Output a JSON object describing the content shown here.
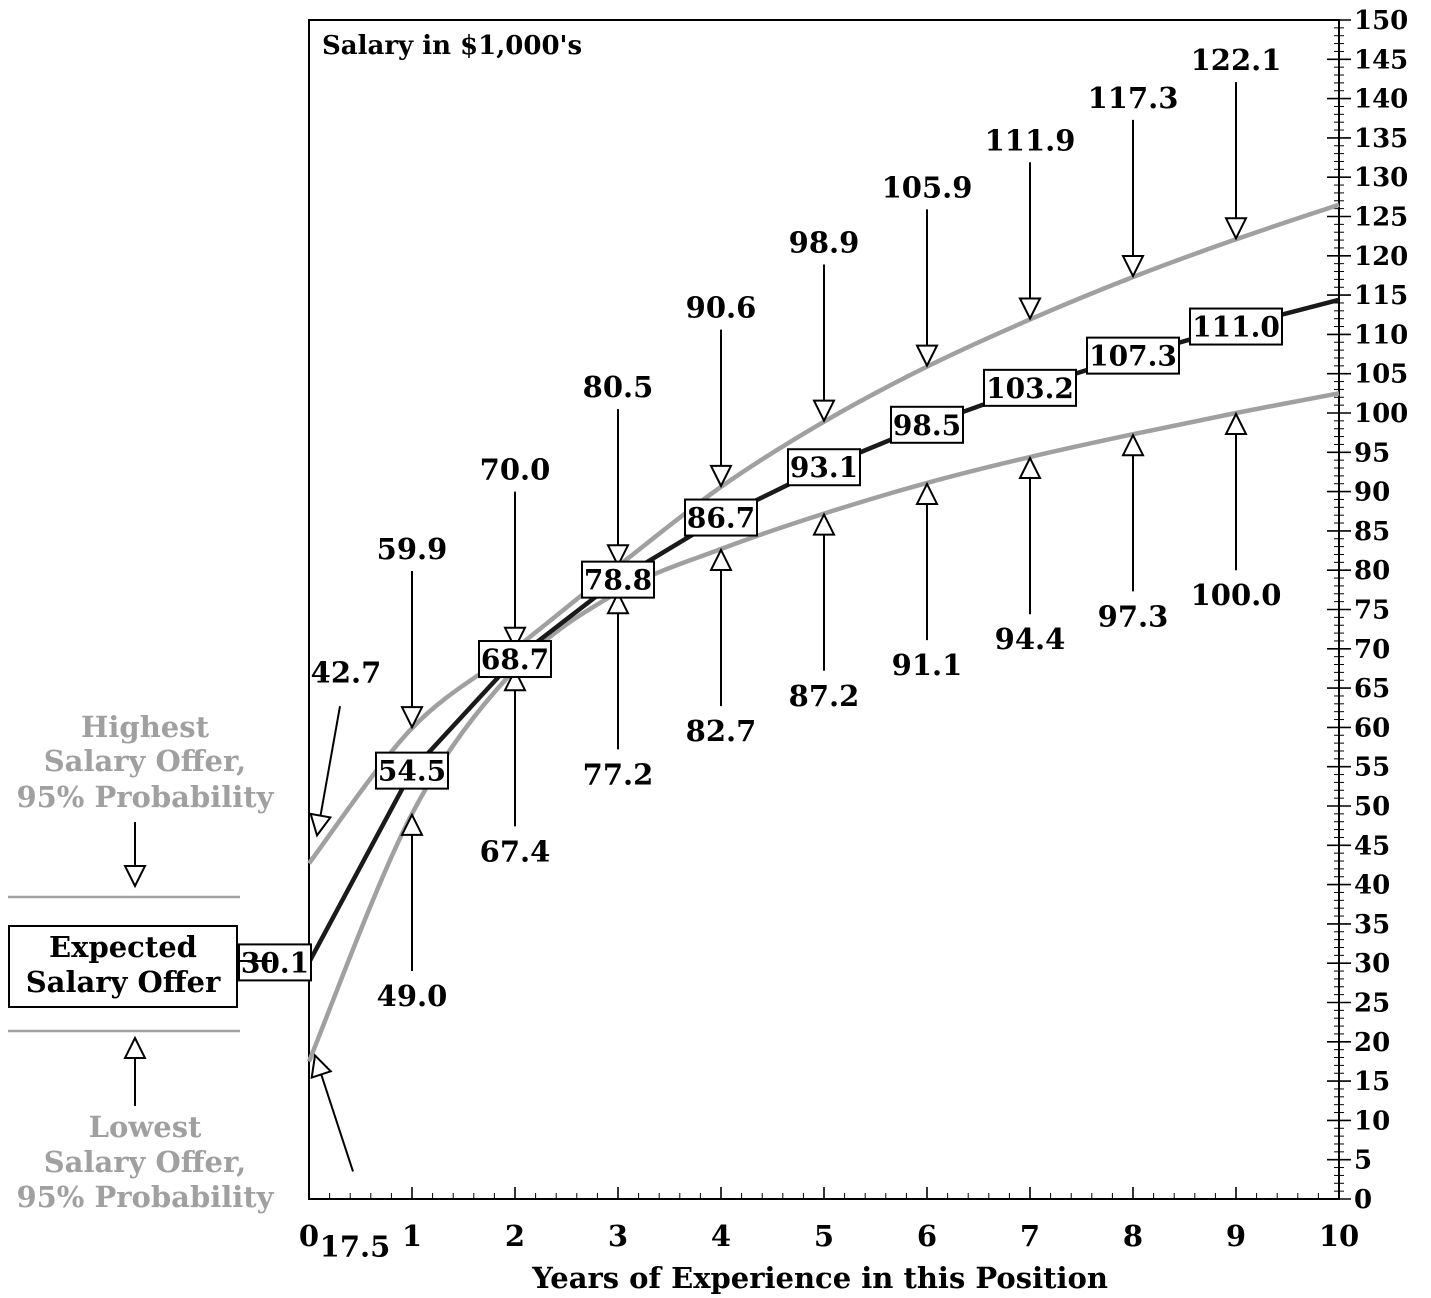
{
  "chart_data": {
    "type": "line",
    "title": "Salary in $1,000's",
    "xlabel": "Years of Experience in this Position",
    "ylabel": "",
    "xlim": [
      0,
      10
    ],
    "ylim": [
      0,
      150
    ],
    "x_ticks": [
      "0",
      "1",
      "2",
      "3",
      "4",
      "5",
      "6",
      "7",
      "8",
      "9",
      "10"
    ],
    "y_ticks": [
      "0",
      "5",
      "10",
      "15",
      "20",
      "25",
      "30",
      "35",
      "40",
      "45",
      "50",
      "55",
      "60",
      "65",
      "70",
      "75",
      "80",
      "85",
      "90",
      "95",
      "100",
      "105",
      "110",
      "115",
      "120",
      "125",
      "130",
      "135",
      "140",
      "145",
      "150"
    ],
    "y_tick_step": 5,
    "y_minor_step": 1,
    "x_minor_step": 0.2,
    "grid": false,
    "legend_position": "left",
    "x": [
      0,
      1,
      2,
      3,
      4,
      5,
      6,
      7,
      8,
      9
    ],
    "series": [
      {
        "key": "high",
        "name": "Highest Salary Offer, 95% Probability",
        "color": "#a0a0a0",
        "values": [
          42.7,
          59.9,
          70.0,
          80.5,
          90.6,
          98.9,
          105.9,
          111.9,
          117.3,
          122.1
        ],
        "labels": [
          "42.7",
          "59.9",
          "70.0",
          "80.5",
          "90.6",
          "98.9",
          "105.9",
          "111.9",
          "117.3",
          "122.1"
        ],
        "x_end": 10,
        "value_end": 126.5
      },
      {
        "key": "expected",
        "name": "Expected Salary Offer",
        "color": "#1a1a1a",
        "values": [
          30.1,
          54.5,
          68.7,
          78.8,
          86.7,
          93.1,
          98.5,
          103.2,
          107.3,
          111.0
        ],
        "labels": [
          "30.1",
          "54.5",
          "68.7",
          "78.8",
          "86.7",
          "93.1",
          "98.5",
          "103.2",
          "107.3",
          "111.0"
        ],
        "x_end": 10,
        "value_end": 114.4
      },
      {
        "key": "low",
        "name": "Lowest Salary Offer, 95% Probability",
        "color": "#a0a0a0",
        "values": [
          17.5,
          49.0,
          67.4,
          77.2,
          82.7,
          87.2,
          91.1,
          94.4,
          97.3,
          100.0
        ],
        "labels": [
          "17.5",
          "49.0",
          "67.4",
          "77.2",
          "82.7",
          "87.2",
          "91.1",
          "94.4",
          "97.3",
          "100.0"
        ],
        "x_end": 10,
        "value_end": 102.5
      }
    ]
  },
  "legend": {
    "highest": [
      "Highest",
      "Salary Offer,",
      "95% Probability"
    ],
    "expected": [
      "Expected",
      "Salary Offer"
    ],
    "lowest": [
      "Lowest",
      "Salary Offer,",
      "95% Probability"
    ]
  },
  "colors": {
    "expected": "#1a1a1a",
    "bounds": "#a0a0a0",
    "axis": "#000000"
  }
}
